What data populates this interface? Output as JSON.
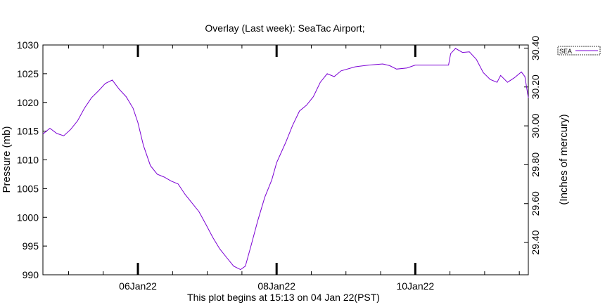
{
  "chart_data": {
    "type": "line",
    "title": "Overlay (Last week): SeaTac Airport;",
    "xlabel": "This plot begins at 15:13 on 04 Jan 22(PST)",
    "ylabel": "Pressure (mb)",
    "y2label": "(Inches of mercury)",
    "ylim": [
      990,
      1030
    ],
    "y_ticks": [
      "990",
      "995",
      "1000",
      "1005",
      "1010",
      "1015",
      "1020",
      "1025",
      "1030"
    ],
    "y2lim": [
      29.234,
      30.416
    ],
    "y2_ticks": [
      "29.40",
      "29.60",
      "29.80",
      "30.00",
      "30.20",
      "30.40"
    ],
    "x_units": "days since plot start",
    "xlim": [
      0,
      7
    ],
    "x_major_ticks": [
      {
        "x": 1.37,
        "label": "06Jan22"
      },
      {
        "x": 3.37,
        "label": "08Jan22"
      },
      {
        "x": 5.37,
        "label": "10Jan22"
      }
    ],
    "grid": false,
    "legend_position": "top-right",
    "series": [
      {
        "name": "SEA",
        "color": "#7b00d4",
        "points": [
          [
            0.0,
            1014.5
          ],
          [
            0.1,
            1015.5
          ],
          [
            0.2,
            1014.6
          ],
          [
            0.3,
            1014.2
          ],
          [
            0.4,
            1015.3
          ],
          [
            0.5,
            1016.8
          ],
          [
            0.6,
            1019.0
          ],
          [
            0.7,
            1020.8
          ],
          [
            0.8,
            1022.0
          ],
          [
            0.9,
            1023.3
          ],
          [
            1.0,
            1023.9
          ],
          [
            1.1,
            1022.3
          ],
          [
            1.2,
            1021.0
          ],
          [
            1.3,
            1019.0
          ],
          [
            1.37,
            1016.5
          ],
          [
            1.45,
            1012.5
          ],
          [
            1.55,
            1009.0
          ],
          [
            1.65,
            1007.5
          ],
          [
            1.75,
            1007.0
          ],
          [
            1.85,
            1006.3
          ],
          [
            1.95,
            1005.8
          ],
          [
            2.05,
            1004.0
          ],
          [
            2.15,
            1002.5
          ],
          [
            2.25,
            1001.0
          ],
          [
            2.35,
            998.8
          ],
          [
            2.45,
            996.5
          ],
          [
            2.55,
            994.5
          ],
          [
            2.65,
            993.0
          ],
          [
            2.75,
            991.5
          ],
          [
            2.85,
            990.9
          ],
          [
            2.92,
            991.5
          ],
          [
            3.0,
            995.0
          ],
          [
            3.1,
            999.5
          ],
          [
            3.2,
            1003.5
          ],
          [
            3.3,
            1006.5
          ],
          [
            3.37,
            1009.5
          ],
          [
            3.5,
            1013.0
          ],
          [
            3.6,
            1016.0
          ],
          [
            3.7,
            1018.5
          ],
          [
            3.8,
            1019.5
          ],
          [
            3.9,
            1021.0
          ],
          [
            4.0,
            1023.5
          ],
          [
            4.1,
            1025.0
          ],
          [
            4.2,
            1024.5
          ],
          [
            4.3,
            1025.5
          ],
          [
            4.5,
            1026.2
          ],
          [
            4.7,
            1026.5
          ],
          [
            4.9,
            1026.7
          ],
          [
            5.0,
            1026.4
          ],
          [
            5.1,
            1025.8
          ],
          [
            5.25,
            1026.0
          ],
          [
            5.37,
            1026.5
          ],
          [
            5.6,
            1026.5
          ],
          [
            5.85,
            1026.5
          ],
          [
            5.88,
            1028.5
          ],
          [
            5.95,
            1029.4
          ],
          [
            6.05,
            1028.7
          ],
          [
            6.15,
            1028.8
          ],
          [
            6.25,
            1027.5
          ],
          [
            6.35,
            1025.2
          ],
          [
            6.45,
            1024.0
          ],
          [
            6.55,
            1023.5
          ],
          [
            6.6,
            1024.7
          ],
          [
            6.7,
            1023.5
          ],
          [
            6.8,
            1024.3
          ],
          [
            6.9,
            1025.3
          ],
          [
            6.95,
            1024.5
          ],
          [
            7.0,
            1020.8
          ]
        ]
      }
    ]
  }
}
